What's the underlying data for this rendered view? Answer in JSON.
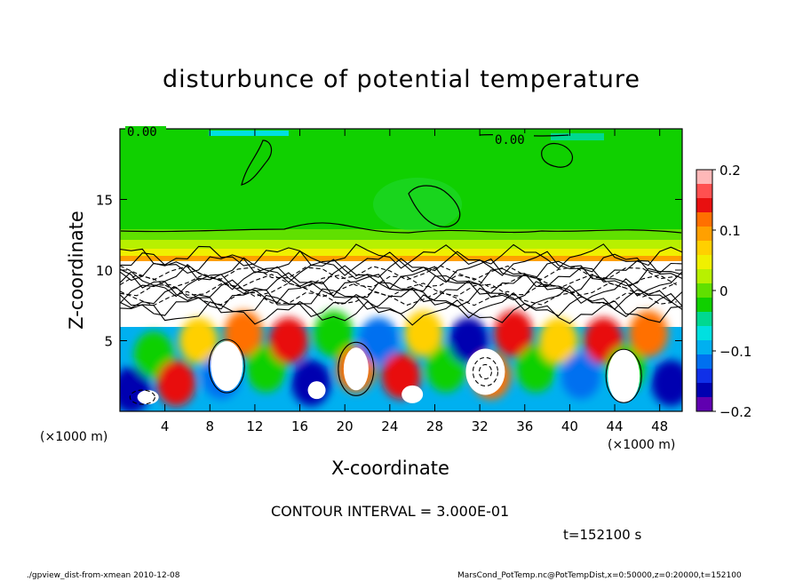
{
  "chart_data": {
    "type": "heatmap",
    "title": "disturbunce of potential temperature",
    "xlabel": "X-coordinate",
    "ylabel": "Z-coordinate",
    "x_unit_note": "(×1000 m)",
    "y_unit_note": "(×1000 m)",
    "xlim": [
      0,
      50
    ],
    "ylim": [
      0,
      20
    ],
    "x_ticks": [
      4,
      8,
      12,
      16,
      20,
      24,
      28,
      32,
      36,
      40,
      44,
      48
    ],
    "y_ticks": [
      5,
      10,
      15
    ],
    "colorbar": {
      "range": [
        -0.2,
        0.2
      ],
      "tick_labels": [
        "0.2",
        "0.1",
        "0",
        "−0.1",
        "−0.2"
      ],
      "tick_values": [
        0.2,
        0.1,
        0,
        -0.1,
        -0.2
      ],
      "colors": [
        "#ffb8b8",
        "#ff5050",
        "#e81010",
        "#ff7000",
        "#ffa000",
        "#ffd000",
        "#f0f000",
        "#b8f000",
        "#60e000",
        "#10d000",
        "#00d890",
        "#00e0e0",
        "#00b0f0",
        "#0070f0",
        "#1030e8",
        "#0000b0",
        "#6000b0"
      ]
    },
    "contour_labels": [
      "0.00",
      "0.00"
    ],
    "contour_interval_text": "CONTOUR INTERVAL = 3.000E-01",
    "time_text": "t=152100 s",
    "upper_layer": {
      "z_range": [
        11,
        20
      ],
      "value": 0.0
    },
    "lower_layer": {
      "z_range": [
        0,
        7
      ],
      "value_range": [
        -0.2,
        0.2
      ]
    }
  },
  "footer": {
    "left": "./gpview_dist-from-xmean  2010-12-08",
    "right": "MarsCond_PotTemp.nc@PotTempDist,x=0:50000,z=0:20000,t=152100"
  }
}
